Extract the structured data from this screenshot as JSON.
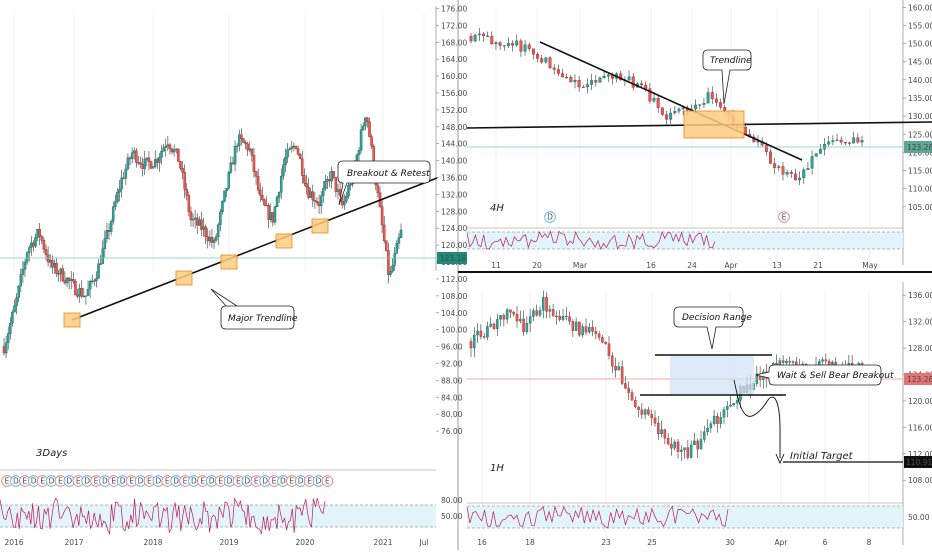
{
  "chart_data": [
    {
      "type": "candlestick",
      "timeframe_label": "3Days",
      "x_tick_labels": [
        "2016",
        "2017",
        "2018",
        "2019",
        "2020",
        "2021",
        "Jul"
      ],
      "y_tick_labels": [
        "76.00",
        "80.00",
        "84.00",
        "88.00",
        "92.00",
        "96.00",
        "100.00",
        "104.00",
        "108.00",
        "112.00",
        "116.00",
        "120.00",
        "124.00",
        "128.00",
        "132.00",
        "136.00",
        "140.00",
        "144.00",
        "148.00",
        "152.00",
        "156.00",
        "160.00",
        "164.00",
        "168.00",
        "172.00",
        "176.00"
      ],
      "ylim": [
        72,
        178
      ],
      "last_price": "123.16",
      "close_path": [
        [
          "2016-01",
          96
        ],
        [
          "2016-03",
          106
        ],
        [
          "2016-05",
          119
        ],
        [
          "2016-06",
          123
        ],
        [
          "2016-08",
          115
        ],
        [
          "2016-10",
          113
        ],
        [
          "2016-11",
          110
        ],
        [
          "2016-12",
          108
        ],
        [
          "2017-01",
          114
        ],
        [
          "2017-03",
          124
        ],
        [
          "2017-05",
          135
        ],
        [
          "2017-07",
          142
        ],
        [
          "2017-09",
          139
        ],
        [
          "2017-10",
          140
        ],
        [
          "2017-11",
          145
        ],
        [
          "2017-12",
          140
        ],
        [
          "2018-02",
          126
        ],
        [
          "2018-03",
          124
        ],
        [
          "2018-04",
          120
        ],
        [
          "2018-06",
          133
        ],
        [
          "2018-08",
          145
        ],
        [
          "2018-09",
          143
        ],
        [
          "2018-11",
          130
        ],
        [
          "2018-12",
          126
        ],
        [
          "2019-02",
          140
        ],
        [
          "2019-04",
          144
        ],
        [
          "2019-06",
          133
        ],
        [
          "2019-08",
          130
        ],
        [
          "2019-10",
          137
        ],
        [
          "2019-11",
          129
        ],
        [
          "2019-12",
          138
        ],
        [
          "2020-01",
          152
        ],
        [
          "2020-02",
          132
        ],
        [
          "2020-03",
          112
        ],
        [
          "2020-04",
          123
        ]
      ],
      "annotations": [
        "Breakout & Retest",
        "Major Trendline"
      ],
      "indicator_band_labels": [
        "80.00",
        "50.00"
      ],
      "event_markers": [
        "E",
        "D",
        "E",
        "D",
        "E",
        "D",
        "E",
        "D",
        "E",
        "D",
        "E",
        "D",
        "E",
        "D",
        "E",
        "D",
        "E",
        "D",
        "E",
        "D",
        "E",
        "D",
        "E",
        "D",
        "E",
        "D",
        "E",
        "D",
        "E",
        "D",
        "E",
        "D",
        "E",
        "D",
        "E",
        "D",
        "E"
      ]
    },
    {
      "type": "candlestick",
      "timeframe_label": "4H",
      "x_tick_labels": [
        "11",
        "20",
        "Mar",
        "16",
        "24",
        "Apr",
        "13",
        "21",
        "May"
      ],
      "y_tick_labels": [
        "105.00",
        "110.00",
        "115.00",
        "120.00",
        "125.00",
        "130.00",
        "135.00",
        "140.00",
        "145.00",
        "150.00",
        "155.00",
        "160.00"
      ],
      "ylim": [
        100,
        162
      ],
      "last_price": "123.28",
      "close_path": [
        [
          "Feb-07",
          152
        ],
        [
          "Feb-13",
          151
        ],
        [
          "Feb-19",
          150
        ],
        [
          "Feb-22",
          147
        ],
        [
          "Feb-24",
          143
        ],
        [
          "Feb-26",
          138
        ],
        [
          "Feb-28",
          140
        ],
        [
          "Mar-03",
          141
        ],
        [
          "Mar-06",
          137
        ],
        [
          "Mar-09",
          130
        ],
        [
          "Mar-11",
          132
        ],
        [
          "Mar-13",
          136
        ],
        [
          "Mar-16",
          128
        ],
        [
          "Mar-18",
          124
        ],
        [
          "Mar-20",
          116
        ],
        [
          "Mar-23",
          112
        ],
        [
          "Mar-25",
          120
        ],
        [
          "Mar-27",
          124
        ],
        [
          "Mar-30",
          123
        ]
      ],
      "annotations": [
        "Trendline"
      ],
      "event_markers": [
        "D",
        "E"
      ]
    },
    {
      "type": "candlestick",
      "timeframe_label": "1H",
      "x_tick_labels": [
        "16",
        "18",
        "23",
        "25",
        "30",
        "Apr",
        "6",
        "8"
      ],
      "y_tick_labels": [
        "108.00",
        "112.00",
        "116.00",
        "120.00",
        "124.00",
        "128.00",
        "132.00",
        "136.00"
      ],
      "ylim": [
        105,
        138
      ],
      "last_price": "123.28",
      "target_price": "110.91",
      "close_path": [
        [
          "Mar16-a",
          129
        ],
        [
          "Mar16-b",
          131
        ],
        [
          "Mar17-a",
          133
        ],
        [
          "Mar17-b",
          131
        ],
        [
          "Mar18-a",
          135
        ],
        [
          "Mar18-b",
          133
        ],
        [
          "Mar19-a",
          131
        ],
        [
          "Mar19-b",
          130
        ],
        [
          "Mar20-a",
          126
        ],
        [
          "Mar20-b",
          121
        ],
        [
          "Mar22-a",
          117
        ],
        [
          "Mar23-a",
          114
        ],
        [
          "Mar23-b",
          112
        ],
        [
          "Mar24-a",
          114
        ],
        [
          "Mar24-b",
          118
        ],
        [
          "Mar25-a",
          121
        ],
        [
          "Mar26-a",
          123
        ],
        [
          "Mar26-b",
          125
        ],
        [
          "Mar27-a",
          126
        ],
        [
          "Mar27-b",
          124
        ],
        [
          "Mar28-a",
          126
        ],
        [
          "Mar29-a",
          125
        ],
        [
          "Mar30-a",
          126
        ]
      ],
      "annotations": [
        "Decision Range",
        "Wait & Sell Bear Breakout",
        "Initial Target"
      ],
      "indicator_band_labels": [
        "50.00"
      ]
    }
  ]
}
